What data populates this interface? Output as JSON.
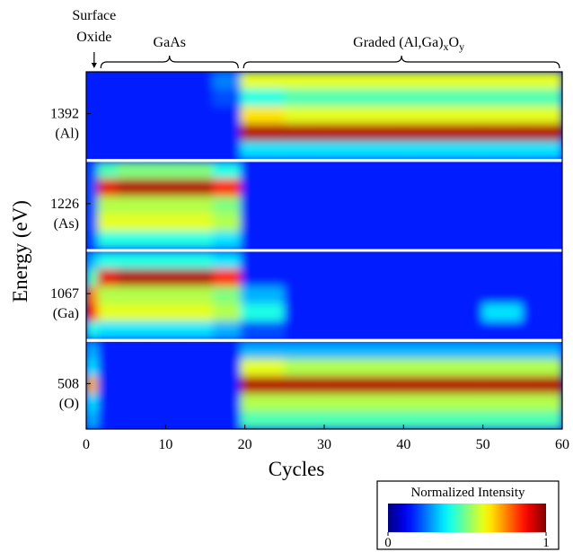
{
  "chart_data": {
    "type": "heatmap",
    "xlabel": "Cycles",
    "ylabel": "Energy (eV)",
    "xlim": [
      0,
      60
    ],
    "xticks": [
      0,
      10,
      20,
      30,
      40,
      50,
      60
    ],
    "x_edges": [
      0,
      1.5,
      4,
      8,
      12,
      16,
      19.5,
      25,
      30,
      40,
      50,
      55,
      60
    ],
    "colormap": "jet",
    "colorbar": {
      "title": "Normalized Intensity",
      "ticks": [
        0,
        1
      ]
    },
    "annotations": [
      {
        "lines": [
          "Surface",
          "Oxide"
        ],
        "arrow_at": 1
      },
      {
        "text": "GaAs",
        "span": [
          1.5,
          19.5
        ]
      },
      {
        "text": "Graded (Al,Ga)",
        "sub": "x",
        "text2": "O",
        "sub2": "y",
        "span": [
          19.5,
          60
        ]
      }
    ],
    "panels": [
      {
        "energy": 1392,
        "element": "(Al)",
        "values": [
          [
            0.15,
            0.15,
            0.15,
            0.15,
            0.15,
            0.25,
            0.6,
            0.6,
            0.6,
            0.6,
            0.6,
            0.6
          ],
          [
            0.15,
            0.15,
            0.15,
            0.15,
            0.15,
            0.2,
            0.4,
            0.45,
            0.45,
            0.45,
            0.45,
            0.45
          ],
          [
            0.15,
            0.15,
            0.15,
            0.15,
            0.15,
            0.15,
            0.65,
            0.6,
            0.6,
            0.6,
            0.6,
            0.6
          ],
          [
            0.15,
            0.15,
            0.15,
            0.15,
            0.15,
            0.15,
            0.95,
            0.95,
            0.95,
            0.95,
            0.95,
            0.95
          ],
          [
            0.15,
            0.15,
            0.15,
            0.15,
            0.15,
            0.15,
            0.35,
            0.35,
            0.35,
            0.35,
            0.35,
            0.35
          ]
        ]
      },
      {
        "energy": 1226,
        "element": "(As)",
        "values": [
          [
            0.2,
            0.45,
            0.5,
            0.5,
            0.5,
            0.4,
            0.15,
            0.15,
            0.15,
            0.15,
            0.15,
            0.15
          ],
          [
            0.2,
            0.9,
            0.95,
            0.95,
            0.95,
            0.85,
            0.15,
            0.15,
            0.15,
            0.15,
            0.15,
            0.15
          ],
          [
            0.2,
            0.55,
            0.55,
            0.55,
            0.55,
            0.5,
            0.15,
            0.15,
            0.15,
            0.15,
            0.15,
            0.15
          ],
          [
            0.2,
            0.6,
            0.6,
            0.6,
            0.6,
            0.55,
            0.15,
            0.15,
            0.15,
            0.15,
            0.15,
            0.15
          ],
          [
            0.2,
            0.4,
            0.4,
            0.4,
            0.4,
            0.35,
            0.15,
            0.15,
            0.15,
            0.15,
            0.15,
            0.15
          ]
        ]
      },
      {
        "energy": 1067,
        "element": "(Ga)",
        "values": [
          [
            0.3,
            0.4,
            0.4,
            0.4,
            0.4,
            0.35,
            0.15,
            0.15,
            0.15,
            0.15,
            0.15,
            0.15
          ],
          [
            0.45,
            0.9,
            0.95,
            0.95,
            0.95,
            0.85,
            0.15,
            0.15,
            0.15,
            0.15,
            0.15,
            0.15
          ],
          [
            0.75,
            0.55,
            0.55,
            0.55,
            0.55,
            0.5,
            0.3,
            0.15,
            0.15,
            0.15,
            0.15,
            0.15
          ],
          [
            0.85,
            0.6,
            0.6,
            0.6,
            0.6,
            0.55,
            0.4,
            0.15,
            0.15,
            0.15,
            0.35,
            0.15
          ],
          [
            0.4,
            0.35,
            0.35,
            0.35,
            0.35,
            0.3,
            0.2,
            0.15,
            0.15,
            0.15,
            0.15,
            0.15
          ]
        ]
      },
      {
        "energy": 508,
        "element": "(O)",
        "values": [
          [
            0.3,
            0.15,
            0.15,
            0.15,
            0.15,
            0.15,
            0.3,
            0.3,
            0.3,
            0.3,
            0.3,
            0.3
          ],
          [
            0.35,
            0.15,
            0.15,
            0.15,
            0.15,
            0.15,
            0.6,
            0.55,
            0.55,
            0.55,
            0.55,
            0.55
          ],
          [
            0.7,
            0.15,
            0.15,
            0.15,
            0.15,
            0.15,
            0.95,
            0.95,
            0.95,
            0.95,
            0.95,
            0.95
          ],
          [
            0.35,
            0.15,
            0.15,
            0.15,
            0.15,
            0.15,
            0.55,
            0.55,
            0.55,
            0.55,
            0.55,
            0.55
          ],
          [
            0.3,
            0.15,
            0.15,
            0.15,
            0.15,
            0.15,
            0.45,
            0.45,
            0.45,
            0.45,
            0.45,
            0.45
          ]
        ]
      }
    ]
  }
}
